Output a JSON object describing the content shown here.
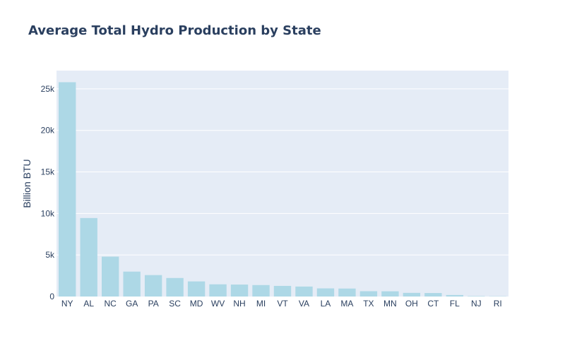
{
  "chart_data": {
    "type": "bar",
    "title": "Average Total Hydro Production by State",
    "xlabel": "",
    "ylabel": "Billion BTU",
    "categories": [
      "NY",
      "AL",
      "NC",
      "GA",
      "PA",
      "SC",
      "MD",
      "WV",
      "NH",
      "MI",
      "VT",
      "VA",
      "LA",
      "MA",
      "TX",
      "MN",
      "OH",
      "CT",
      "FL",
      "NJ",
      "RI"
    ],
    "values": [
      25800,
      9450,
      4800,
      3000,
      2580,
      2230,
      1820,
      1470,
      1440,
      1380,
      1280,
      1200,
      980,
      960,
      640,
      630,
      440,
      420,
      180,
      50,
      30
    ],
    "ylim": [
      0,
      27200
    ],
    "yticks": [
      0,
      5000,
      10000,
      15000,
      20000,
      25000
    ],
    "ytick_labels": [
      "0",
      "5k",
      "10k",
      "15k",
      "20k",
      "25k"
    ],
    "grid": true,
    "bar_color": "#add8e6",
    "plot_bg": "#e5ecf6",
    "text_color": "#2a3f5f"
  }
}
